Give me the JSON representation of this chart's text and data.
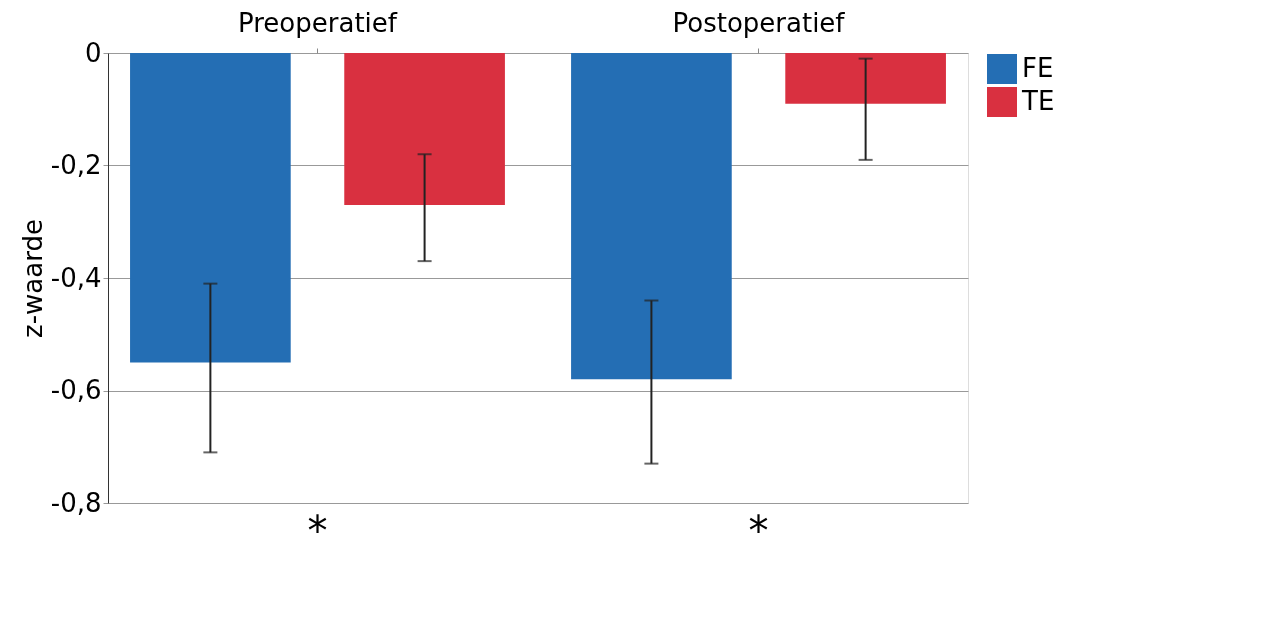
{
  "chart_data": {
    "type": "bar",
    "ylabel": "z-waarde",
    "categories": [
      "Preoperatief",
      "Postoperatief"
    ],
    "series": [
      {
        "name": "FE",
        "color": "#246eb4",
        "values": [
          -0.55,
          -0.58
        ],
        "errors": [
          [
            -0.71,
            -0.41
          ],
          [
            -0.73,
            -0.44
          ]
        ]
      },
      {
        "name": "TE",
        "color": "#d93040",
        "values": [
          -0.27,
          -0.09
        ],
        "errors": [
          [
            -0.37,
            -0.18
          ],
          [
            -0.19,
            -0.01
          ]
        ]
      }
    ],
    "ylim": [
      -0.8,
      0
    ],
    "yticks": [
      {
        "value": 0,
        "label": "0"
      },
      {
        "value": -0.2,
        "label": "-0,2"
      },
      {
        "value": -0.4,
        "label": "-0,4"
      },
      {
        "value": -0.6,
        "label": "-0,6"
      },
      {
        "value": -0.8,
        "label": "-0,8"
      }
    ],
    "grid": "y",
    "legend": "right",
    "annotations": [
      "*",
      "*"
    ]
  }
}
